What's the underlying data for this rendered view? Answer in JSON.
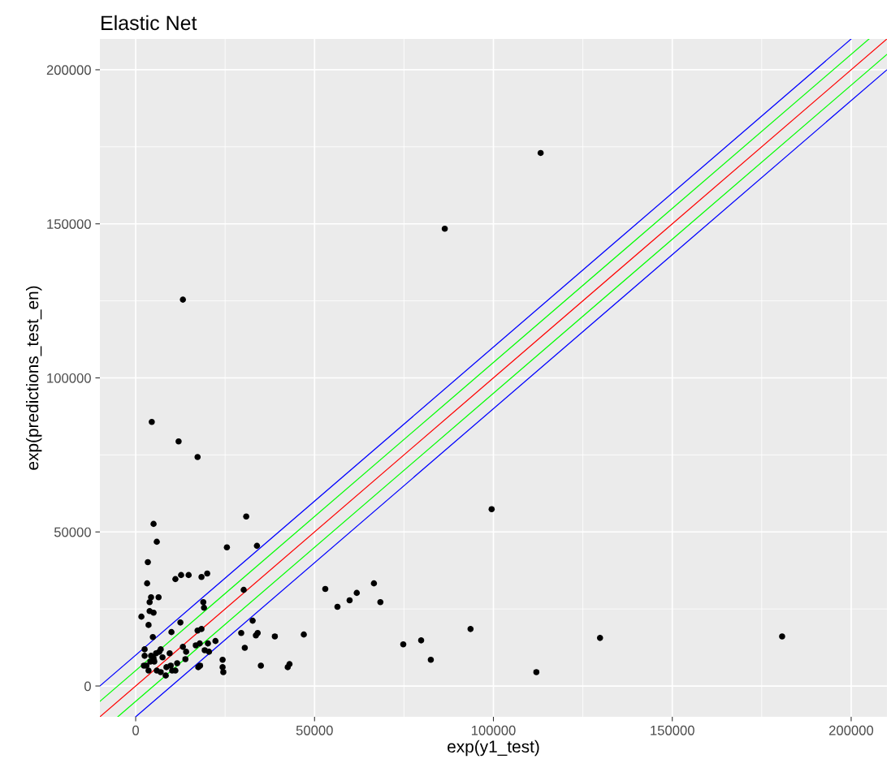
{
  "chart_data": {
    "type": "scatter",
    "title": "Elastic Net",
    "xlabel": "exp(y1_test)",
    "ylabel": "exp(predictions_test_en)",
    "xlim": [
      -10000,
      210000
    ],
    "ylim": [
      -10000,
      210000
    ],
    "xticks": [
      0,
      50000,
      100000,
      150000,
      200000
    ],
    "yticks": [
      0,
      50000,
      100000,
      150000,
      200000
    ],
    "grid": true,
    "series": [
      {
        "color": "#000000",
        "marker": "circle",
        "x": [
          113200,
          86400,
          13200,
          4500,
          12000,
          17300,
          5000,
          5900,
          30900,
          33900,
          25500,
          99500,
          3400,
          3200,
          6400,
          4300,
          11100,
          12700,
          14800,
          18400,
          20000,
          30200,
          18900,
          19100,
          3900,
          5000,
          3900,
          3600,
          12500,
          4800,
          10000,
          18400,
          17300,
          29500,
          32700,
          34100,
          33600,
          38900,
          47000,
          53000,
          56400,
          59800,
          61800,
          66600,
          68400,
          74800,
          79800,
          82500,
          93600,
          112000,
          129800,
          180700,
          20200,
          22300,
          16800,
          17900,
          13200,
          13900,
          14100,
          17500,
          18000,
          19300,
          20500,
          24300,
          24300,
          24500,
          30500,
          35000,
          42500,
          43000,
          1600,
          2500,
          2500,
          3000,
          4100,
          5200,
          3600,
          5900,
          7000,
          8600,
          10200,
          11100,
          11600,
          9800,
          7500,
          5700,
          7000,
          9500,
          5000,
          6600,
          8400,
          4300,
          2300
        ],
        "values": [
          173000,
          148400,
          125400,
          85700,
          79400,
          74300,
          52600,
          46800,
          55000,
          45500,
          45000,
          57400,
          40200,
          33300,
          28800,
          28800,
          34700,
          36000,
          36000,
          35400,
          36500,
          31200,
          27200,
          25400,
          27200,
          23800,
          24300,
          19800,
          20600,
          15900,
          17500,
          18500,
          18000,
          17200,
          21200,
          17200,
          16400,
          16100,
          16700,
          31500,
          25700,
          27800,
          30200,
          33300,
          27200,
          13500,
          14800,
          8500,
          18500,
          4500,
          15600,
          16100,
          13800,
          14600,
          13200,
          13800,
          12700,
          8700,
          11100,
          6100,
          6600,
          11600,
          11100,
          8500,
          6100,
          4500,
          12400,
          6600,
          6100,
          7100,
          22500,
          11900,
          9800,
          6600,
          7900,
          7900,
          5000,
          5000,
          4500,
          6100,
          5000,
          5000,
          7400,
          6600,
          9300,
          10600,
          11900,
          10600,
          9000,
          11100,
          3400,
          9800,
          6600
        ]
      },
      {
        "type": "line",
        "color": "#0000ff",
        "x": [
          -10000,
          200000
        ],
        "values": [
          0,
          210000
        ]
      },
      {
        "type": "line",
        "color": "#00ff00",
        "x": [
          -10000,
          205000
        ],
        "values": [
          -5000,
          210000
        ]
      },
      {
        "type": "line",
        "color": "#ff0000",
        "x": [
          -10000,
          210000
        ],
        "values": [
          -10000,
          210000
        ]
      },
      {
        "type": "line",
        "color": "#00ff00",
        "x": [
          -5000,
          210000
        ],
        "values": [
          -10000,
          205000
        ]
      },
      {
        "type": "line",
        "color": "#0000ff",
        "x": [
          0,
          210000
        ],
        "values": [
          -10000,
          200000
        ]
      }
    ]
  }
}
